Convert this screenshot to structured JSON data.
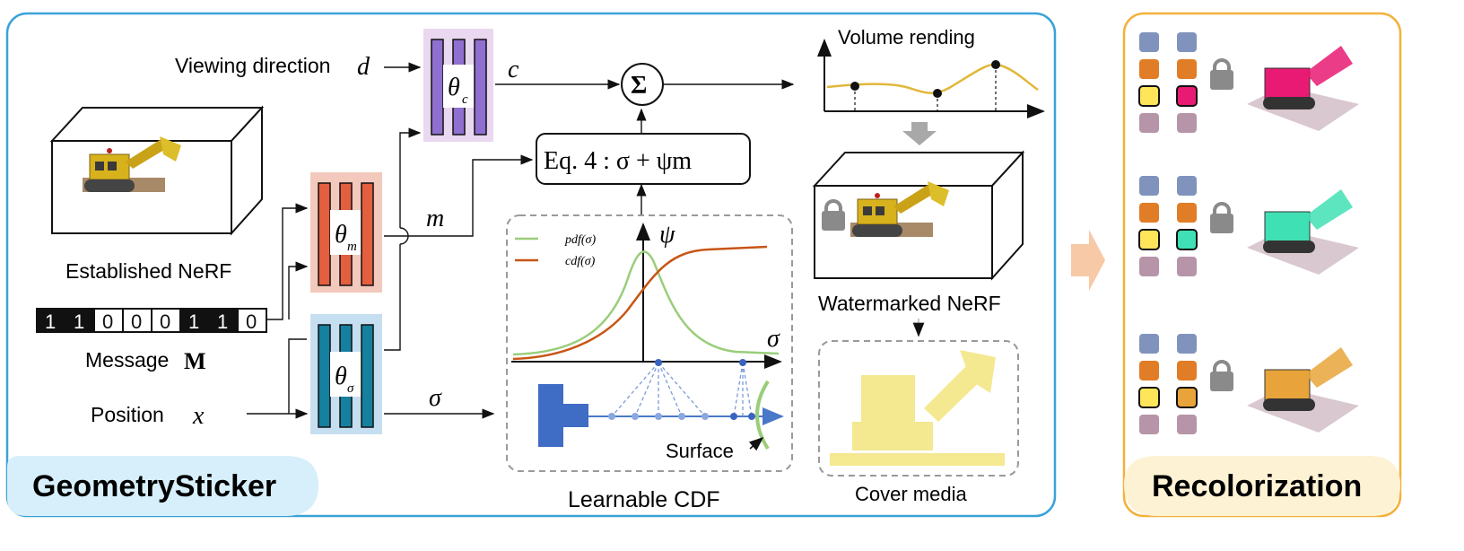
{
  "panels": {
    "left_title": "GeometrySticker",
    "right_title": "Recolorization"
  },
  "inputs": {
    "viewing_direction": "Viewing direction",
    "viewing_symbol": "d",
    "position": "Position",
    "position_symbol": "x",
    "message": "Message",
    "message_symbol": "M",
    "message_bits": [
      "1",
      "1",
      "0",
      "0",
      "0",
      "1",
      "1",
      "0"
    ],
    "established_nerf": "Established NeRF"
  },
  "networks": {
    "theta_c": "θ",
    "theta_c_sub": "c",
    "theta_m": "θ",
    "theta_m_sub": "m",
    "theta_sigma": "θ",
    "theta_sigma_sub": "σ"
  },
  "flow": {
    "c": "c",
    "m": "m",
    "sigma": "σ",
    "sum": "Σ",
    "equation": "Eq. 4 : σ + ψm"
  },
  "volume": {
    "title": "Volume rending",
    "watermarked": "Watermarked NeRF",
    "cover_media": "Cover media"
  },
  "cdf": {
    "title": "Learnable CDF",
    "legend_pdf": "pdf(σ)",
    "legend_cdf": "cdf(σ)",
    "y_axis": "ψ",
    "x_axis": "σ",
    "surface": "Surface"
  },
  "colors": {
    "blue_border": "#3aa2d8",
    "orange_border": "#f3b13a",
    "theta_c_fill": "#8f6fcf",
    "theta_m_fill": "#e35f3f",
    "theta_sigma_fill": "#16809f",
    "pdf": "#9acd7a",
    "cdf": "#c85516"
  },
  "recolor": {
    "rows": [
      {
        "highlight": "#e81a73"
      },
      {
        "highlight": "#3fe0b4"
      },
      {
        "highlight": "#e8a43a"
      }
    ]
  }
}
